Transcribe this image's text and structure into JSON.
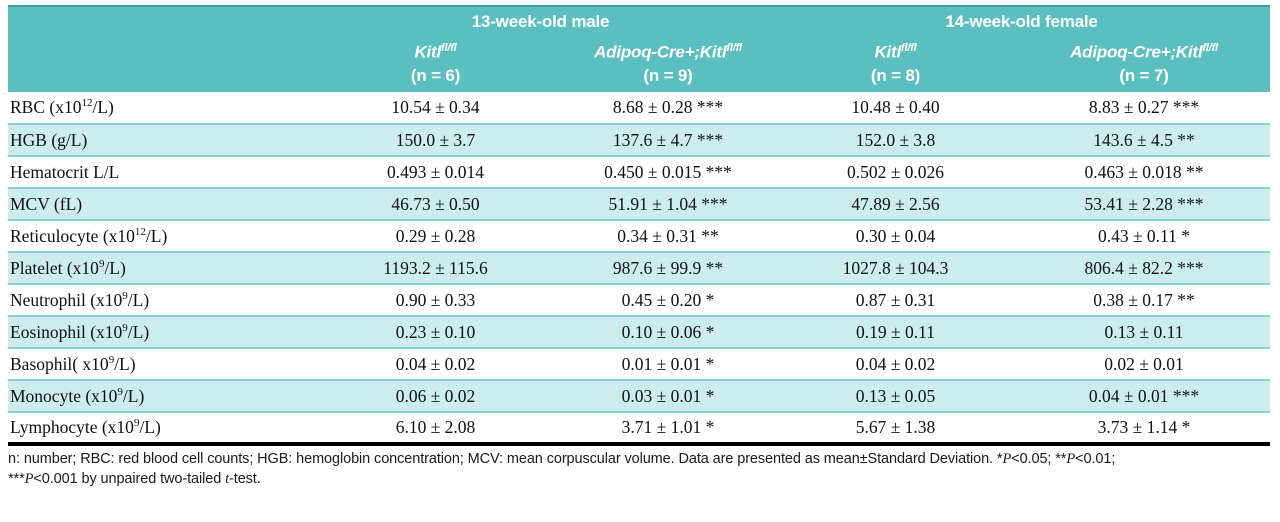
{
  "header": {
    "groups": [
      {
        "label": "13-week-old male"
      },
      {
        "label": "14-week-old female"
      }
    ],
    "columns": [
      {
        "gene_pre": "Kitl",
        "gene_sup": "fl/fl",
        "n": "(n = 6)"
      },
      {
        "gene_pre": "Adipoq-Cre+;Kitl",
        "gene_sup": "fl/fl",
        "n": "(n = 9)"
      },
      {
        "gene_pre": "Kitl",
        "gene_sup": "fl/fl",
        "n": "(n = 8)"
      },
      {
        "gene_pre": "Adipoq-Cre+;Kitl",
        "gene_sup": "fl/fl",
        "n": "(n = 7)"
      }
    ]
  },
  "table": {
    "rows": [
      {
        "label": {
          "pre": "RBC (x10",
          "sup": "12",
          "post": "/L)"
        },
        "values": [
          "10.54 ± 0.34",
          "8.68 ± 0.28 ***",
          "10.48 ± 0.40",
          "8.83 ± 0.27 ***"
        ]
      },
      {
        "label": {
          "pre": "HGB (g/L)",
          "sup": "",
          "post": ""
        },
        "values": [
          "150.0 ± 3.7",
          "137.6 ± 4.7 ***",
          "152.0 ± 3.8",
          "143.6 ± 4.5 **"
        ]
      },
      {
        "label": {
          "pre": "Hematocrit L/L",
          "sup": "",
          "post": ""
        },
        "values": [
          "0.493 ± 0.014",
          "0.450 ± 0.015 ***",
          "0.502 ± 0.026",
          "0.463 ± 0.018 **"
        ]
      },
      {
        "label": {
          "pre": "MCV (fL)",
          "sup": "",
          "post": ""
        },
        "values": [
          "46.73 ± 0.50",
          "51.91 ± 1.04 ***",
          "47.89 ± 2.56",
          "53.41 ± 2.28 ***"
        ]
      },
      {
        "label": {
          "pre": "Reticulocyte (x10",
          "sup": "12",
          "post": "/L)"
        },
        "values": [
          "0.29 ± 0.28",
          "0.34 ± 0.31 **",
          "0.30 ± 0.04",
          "0.43 ± 0.11 *"
        ]
      },
      {
        "label": {
          "pre": "Platelet (x10",
          "sup": "9",
          "post": "/L)"
        },
        "values": [
          "1193.2 ± 115.6",
          "987.6 ± 99.9 **",
          "1027.8 ± 104.3",
          "806.4 ± 82.2 ***"
        ]
      },
      {
        "label": {
          "pre": "Neutrophil (x10",
          "sup": "9",
          "post": "/L)"
        },
        "values": [
          "0.90 ± 0.33",
          "0.45 ± 0.20 *",
          "0.87 ± 0.31",
          "0.38 ± 0.17 **"
        ]
      },
      {
        "label": {
          "pre": "Eosinophil (x10",
          "sup": "9",
          "post": "/L)"
        },
        "values": [
          "0.23 ± 0.10",
          "0.10 ± 0.06 *",
          "0.19 ± 0.11",
          "0.13 ± 0.11"
        ]
      },
      {
        "label": {
          "pre": "Basophil( x10",
          "sup": "9",
          "post": "/L)"
        },
        "values": [
          "0.04 ± 0.02",
          "0.01 ± 0.01 *",
          "0.04 ± 0.02",
          "0.02 ± 0.01"
        ]
      },
      {
        "label": {
          "pre": "Monocyte (x10",
          "sup": "9",
          "post": "/L)"
        },
        "values": [
          "0.06 ± 0.02",
          "0.03 ± 0.01 *",
          "0.13 ± 0.05",
          "0.04 ± 0.01 ***"
        ]
      },
      {
        "label": {
          "pre": "Lymphocyte (x10",
          "sup": "9",
          "post": "/L)"
        },
        "values": [
          "6.10 ± 2.08",
          "3.71 ± 1.01 *",
          "5.67 ± 1.38",
          "3.73 ± 1.14 *"
        ]
      }
    ]
  },
  "footnote": {
    "line1": {
      "p0": "n: number; RBC: red blood cell counts; HGB: hemoglobin concentration; MCV: mean corpuscular volume. Data are presented as mean±Standard Deviation. *",
      "p1": "P",
      "p2": "<0.05; **",
      "p3": "P",
      "p4": "<0.01;"
    },
    "line2": {
      "p0": "***",
      "p1": "P",
      "p2": "<0.001 by unpaired two-tailed ",
      "p3": "t",
      "p4": "-test."
    }
  },
  "colors": {
    "header_teal": "#5bbfc0",
    "header_teal_dark": "#3f9fa1",
    "row_stripe": "#cdecec",
    "row_line": "#86cfcf",
    "table_border": "#000000"
  }
}
